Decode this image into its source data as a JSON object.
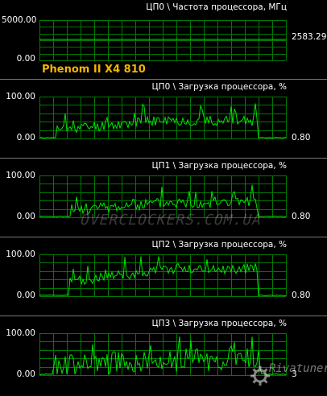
{
  "colors": {
    "background": "#000000",
    "grid": "#007a00",
    "line": "#00e600",
    "label": "#ffffff",
    "cpu_name": "#f5b400"
  },
  "cpu_name": "Phenom II X4 810",
  "watermark": "OVERCLOCKERS.COM.UA",
  "watermark2": "Rivatuner",
  "panels": [
    {
      "title": "ЦП0 \\ Частота процессора, МГц",
      "ymax_label": "5000.00",
      "ymin_label": "0.00",
      "current": "2583.29"
    },
    {
      "title": "ЦП0 \\ Загрузка процессора, %",
      "ymax_label": "100.00",
      "ymin_label": "0.00",
      "current": "0.80"
    },
    {
      "title": "ЦП1 \\ Загрузка процессора, %",
      "ymax_label": "100.00",
      "ymin_label": "0.00",
      "current": "0.80"
    },
    {
      "title": "ЦП2 \\ Загрузка процессора, %",
      "ymax_label": "100.00",
      "ymin_label": "0.00",
      "current": "0.80"
    },
    {
      "title": "ЦП3 \\ Загрузка процессора, %",
      "ymax_label": "100.00",
      "ymin_label": "0.00",
      "current": "3"
    }
  ]
}
